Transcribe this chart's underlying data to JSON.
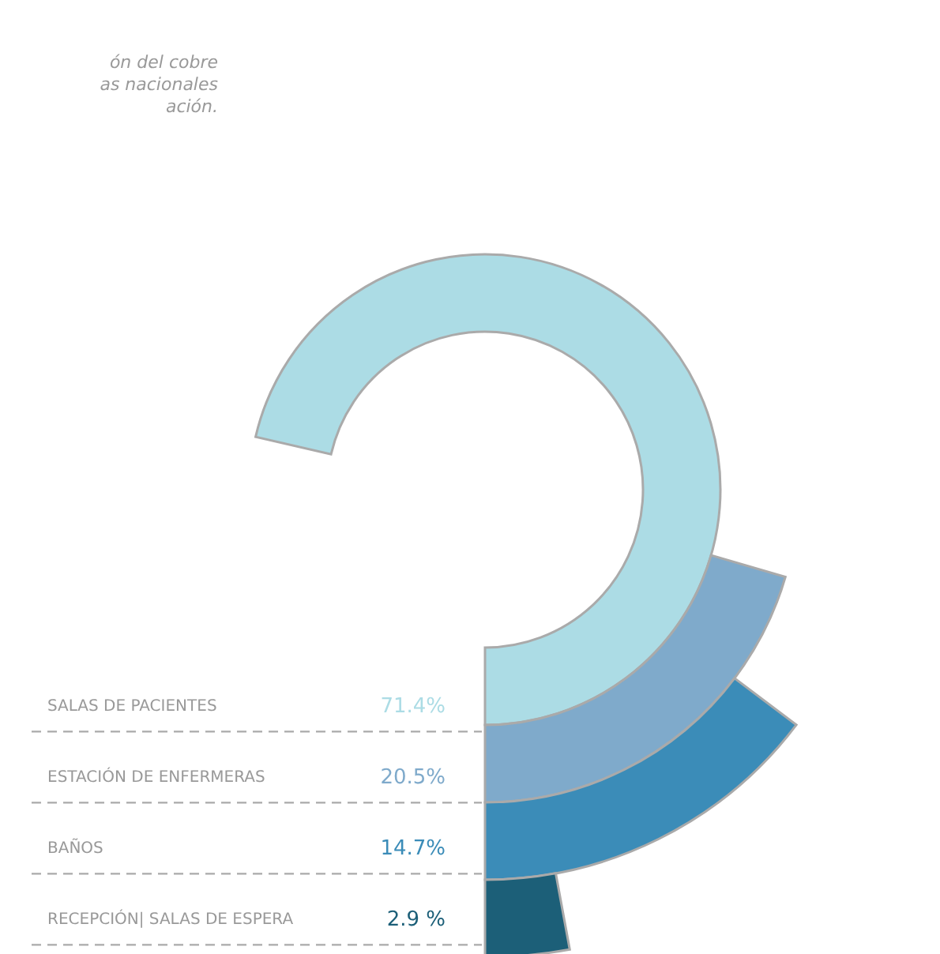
{
  "chart_data": {
    "type": "other",
    "categories": [
      "SALAS DE PACIENTES",
      "ESTACIÓN DE ENFERMERAS",
      "BAÑOS",
      "RECEPCIÓN|  SALAS DE ESPERA"
    ],
    "values": [
      71.4,
      20.5,
      14.7,
      2.9
    ],
    "value_labels": [
      "71.4%",
      "20.5%",
      "14.7%",
      "2.9 %"
    ],
    "colors": [
      "#acdce5",
      "#7faacb",
      "#3b8cb8",
      "#1c5f78"
    ],
    "annotations": [
      "ón del cobre",
      "as nacionales",
      "ación."
    ]
  }
}
